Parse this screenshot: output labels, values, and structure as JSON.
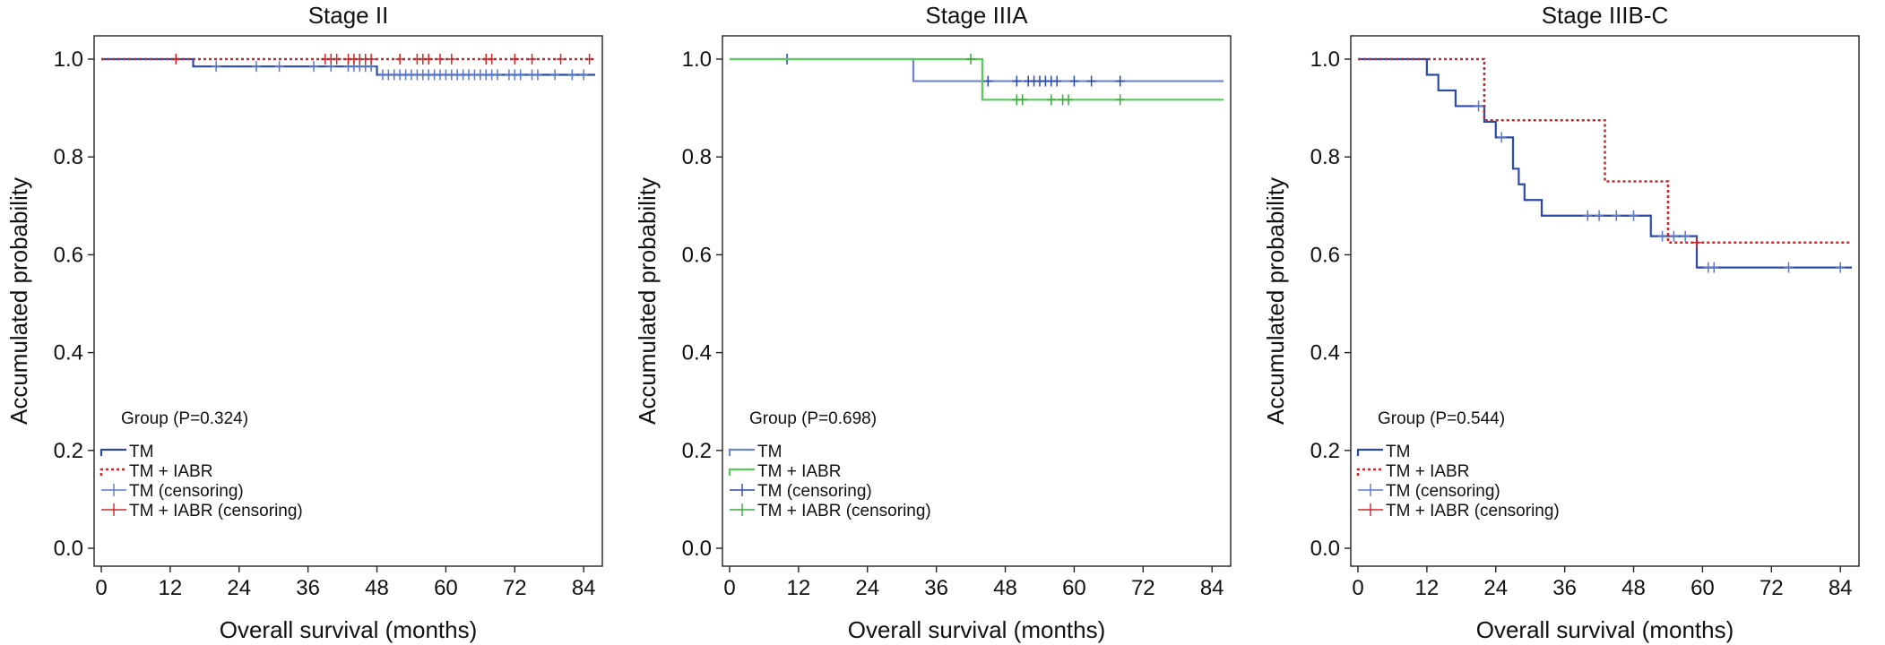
{
  "chart_data": [
    {
      "type": "line",
      "title": "Stage II",
      "xlabel": "Overall survival (months)",
      "ylabel": "Accumulated probability",
      "xlim": [
        0,
        86
      ],
      "ylim": [
        0,
        1.0
      ],
      "xticks": [
        "0",
        "12",
        "24",
        "36",
        "48",
        "60",
        "72",
        "84"
      ],
      "yticks": [
        "0.0",
        "0.2",
        "0.4",
        "0.6",
        "0.8",
        "1.0"
      ],
      "legend_title": "Group (P=0.324)",
      "legend_placement": "bottom-left",
      "series": [
        {
          "name": "TM",
          "color": "#2a4aa8",
          "style": "solid",
          "steps": [
            [
              0,
              1.0
            ],
            [
              16,
              0.985
            ],
            [
              48,
              0.968
            ],
            [
              86,
              0.968
            ]
          ],
          "censor_label": "TM (censoring)",
          "censor_color": "#5a78c8",
          "censors": [
            20,
            27,
            31,
            37,
            40,
            43,
            44,
            45,
            46,
            47,
            49,
            50,
            51,
            52,
            53,
            54,
            55,
            56,
            57,
            58,
            59,
            60,
            61,
            62,
            63,
            64,
            65,
            66,
            67,
            68,
            69,
            71,
            72,
            73,
            75,
            76,
            79,
            82,
            84
          ]
        },
        {
          "name": "TM + IABR",
          "color": "#c8282a",
          "style": "dotted",
          "steps": [
            [
              0,
              1.0
            ],
            [
              86,
              1.0
            ]
          ],
          "censor_label": "TM + IABR (censoring)",
          "censor_color": "#c8282a",
          "censors": [
            13,
            39,
            40,
            41,
            43,
            44,
            45,
            46,
            47,
            52,
            55,
            56,
            57,
            59,
            61,
            67,
            68,
            72,
            75,
            80,
            85
          ]
        }
      ]
    },
    {
      "type": "line",
      "title": "Stage IIIA",
      "xlabel": "Overall survival (months)",
      "ylabel": "Accumulated probability",
      "xlim": [
        0,
        86
      ],
      "ylim": [
        0,
        1.0
      ],
      "xticks": [
        "0",
        "12",
        "24",
        "36",
        "48",
        "60",
        "72",
        "84"
      ],
      "yticks": [
        "0.0",
        "0.2",
        "0.4",
        "0.6",
        "0.8",
        "1.0"
      ],
      "legend_title": "Group (P=0.698)",
      "legend_placement": "bottom-left",
      "series": [
        {
          "name": "TM",
          "color": "#6b86cc",
          "style": "solid",
          "steps": [
            [
              0,
              1.0
            ],
            [
              32,
              0.955
            ],
            [
              86,
              0.955
            ]
          ],
          "censor_label": "TM (censoring)",
          "censor_color": "#2a4aa8",
          "censors": [
            10,
            45,
            50,
            52,
            53,
            54,
            55,
            56,
            57,
            60,
            63,
            68
          ]
        },
        {
          "name": "TM + IABR",
          "color": "#5cc85c",
          "style": "solid",
          "steps": [
            [
              0,
              1.0
            ],
            [
              44,
              0.917
            ],
            [
              86,
              0.917
            ]
          ],
          "censor_label": "TM + IABR (censoring)",
          "censor_color": "#3aa83a",
          "censors": [
            42,
            50,
            51,
            56,
            58,
            59,
            68
          ]
        }
      ]
    },
    {
      "type": "line",
      "title": "Stage IIIB-C",
      "xlabel": "Overall survival (months)",
      "ylabel": "Accumulated probability",
      "xlim": [
        0,
        86
      ],
      "ylim": [
        0,
        1.0
      ],
      "xticks": [
        "0",
        "12",
        "24",
        "36",
        "48",
        "60",
        "72",
        "84"
      ],
      "yticks": [
        "0.0",
        "0.2",
        "0.4",
        "0.6",
        "0.8",
        "1.0"
      ],
      "legend_title": "Group (P=0.544)",
      "legend_placement": "bottom-left",
      "series": [
        {
          "name": "TM",
          "color": "#2a4aa8",
          "style": "solid",
          "steps": [
            [
              0,
              1.0
            ],
            [
              12,
              0.968
            ],
            [
              14,
              0.936
            ],
            [
              17,
              0.904
            ],
            [
              22,
              0.872
            ],
            [
              24,
              0.84
            ],
            [
              27,
              0.776
            ],
            [
              28,
              0.744
            ],
            [
              29,
              0.712
            ],
            [
              32,
              0.68
            ],
            [
              51,
              0.638
            ],
            [
              59,
              0.574
            ],
            [
              86,
              0.574
            ]
          ],
          "censor_label": "TM (censoring)",
          "censor_color": "#5a78c8",
          "censors": [
            21,
            25,
            40,
            42,
            45,
            48,
            53,
            55,
            57,
            61,
            62,
            75,
            84
          ]
        },
        {
          "name": "TM + IABR",
          "color": "#c8282a",
          "style": "dotted",
          "steps": [
            [
              0,
              1.0
            ],
            [
              22,
              0.875
            ],
            [
              43,
              0.75
            ],
            [
              54,
              0.625
            ],
            [
              86,
              0.625
            ]
          ],
          "censor_label": "TM + IABR (censoring)",
          "censor_color": "#c8282a",
          "censors": [
            59
          ]
        }
      ]
    }
  ]
}
